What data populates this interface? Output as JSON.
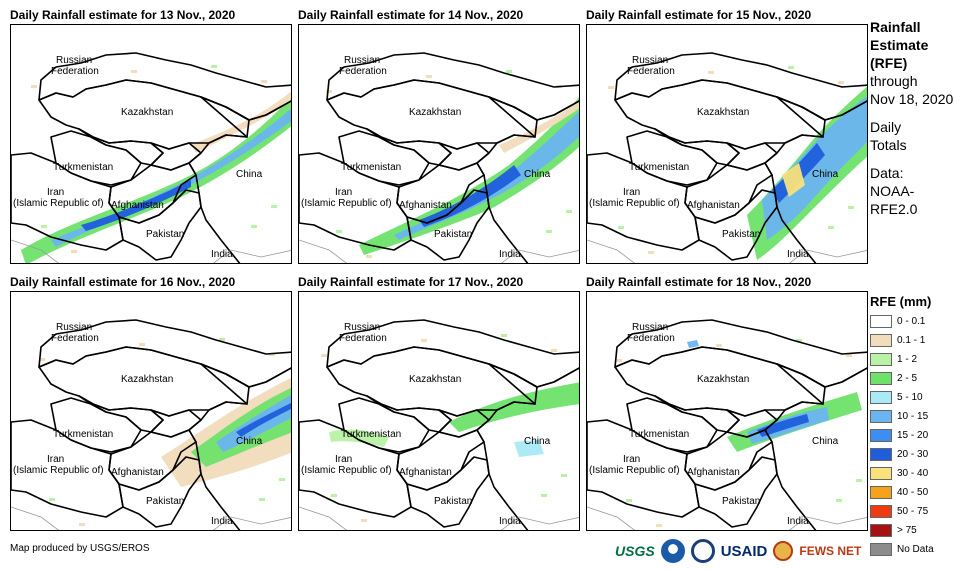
{
  "panels": [
    {
      "title": "Daily Rainfall estimate for 13 Nov., 2020",
      "intensity": "heavy-west"
    },
    {
      "title": "Daily Rainfall estimate for 14 Nov., 2020",
      "intensity": "heavy-central"
    },
    {
      "title": "Daily Rainfall estimate for 15 Nov., 2020",
      "intensity": "heavy-east"
    },
    {
      "title": "Daily Rainfall estimate for 16 Nov., 2020",
      "intensity": "east"
    },
    {
      "title": "Daily Rainfall estimate for 17 Nov., 2020",
      "intensity": "light"
    },
    {
      "title": "Daily Rainfall estimate for 18 Nov., 2020",
      "intensity": "moderate-east"
    }
  ],
  "map_labels": {
    "russia_1": "Russian",
    "russia_2": "Federation",
    "kazakhstan": "Kazakhstan",
    "turkmenistan": "Turkmenistan",
    "iran_1": "Iran",
    "iran_2": "(Islamic Republic of)",
    "afghanistan": "Afghanistan",
    "pakistan": "Pakistan",
    "china": "China",
    "india": "India"
  },
  "side_info": {
    "title_1": "Rainfall",
    "title_2": "Estimate",
    "title_3": "(RFE)",
    "through_1": "through",
    "through_2": "Nov 18, 2020",
    "totals_1": "Daily",
    "totals_2": "Totals",
    "data_1": "Data:",
    "data_2": "NOAA-",
    "data_3": "RFE2.0"
  },
  "legend": {
    "title": "RFE (mm)",
    "items": [
      {
        "label": "0 - 0.1",
        "color": "#ffffff"
      },
      {
        "label": "0.1 - 1",
        "color": "#f1dcbc"
      },
      {
        "label": "1 - 2",
        "color": "#b9f2a4"
      },
      {
        "label": "2 - 5",
        "color": "#6ee16a"
      },
      {
        "label": "5 - 10",
        "color": "#a8eaf6"
      },
      {
        "label": "10 - 15",
        "color": "#6ab4f0"
      },
      {
        "label": "15 - 20",
        "color": "#3d8ef0"
      },
      {
        "label": "20 - 30",
        "color": "#1f5ddb"
      },
      {
        "label": "30 - 40",
        "color": "#f9e27b"
      },
      {
        "label": "40 - 50",
        "color": "#f5a21c"
      },
      {
        "label": "50 - 75",
        "color": "#ee3b12"
      },
      {
        "label": "> 75",
        "color": "#a41212"
      },
      {
        "label": "No Data",
        "color": "#8c8c8c"
      }
    ]
  },
  "footer": {
    "credit": "Map produced by USGS/EROS",
    "logo_usgs": "USGS",
    "logo_usaid": "USAID",
    "logo_fews": "FEWS NET"
  }
}
